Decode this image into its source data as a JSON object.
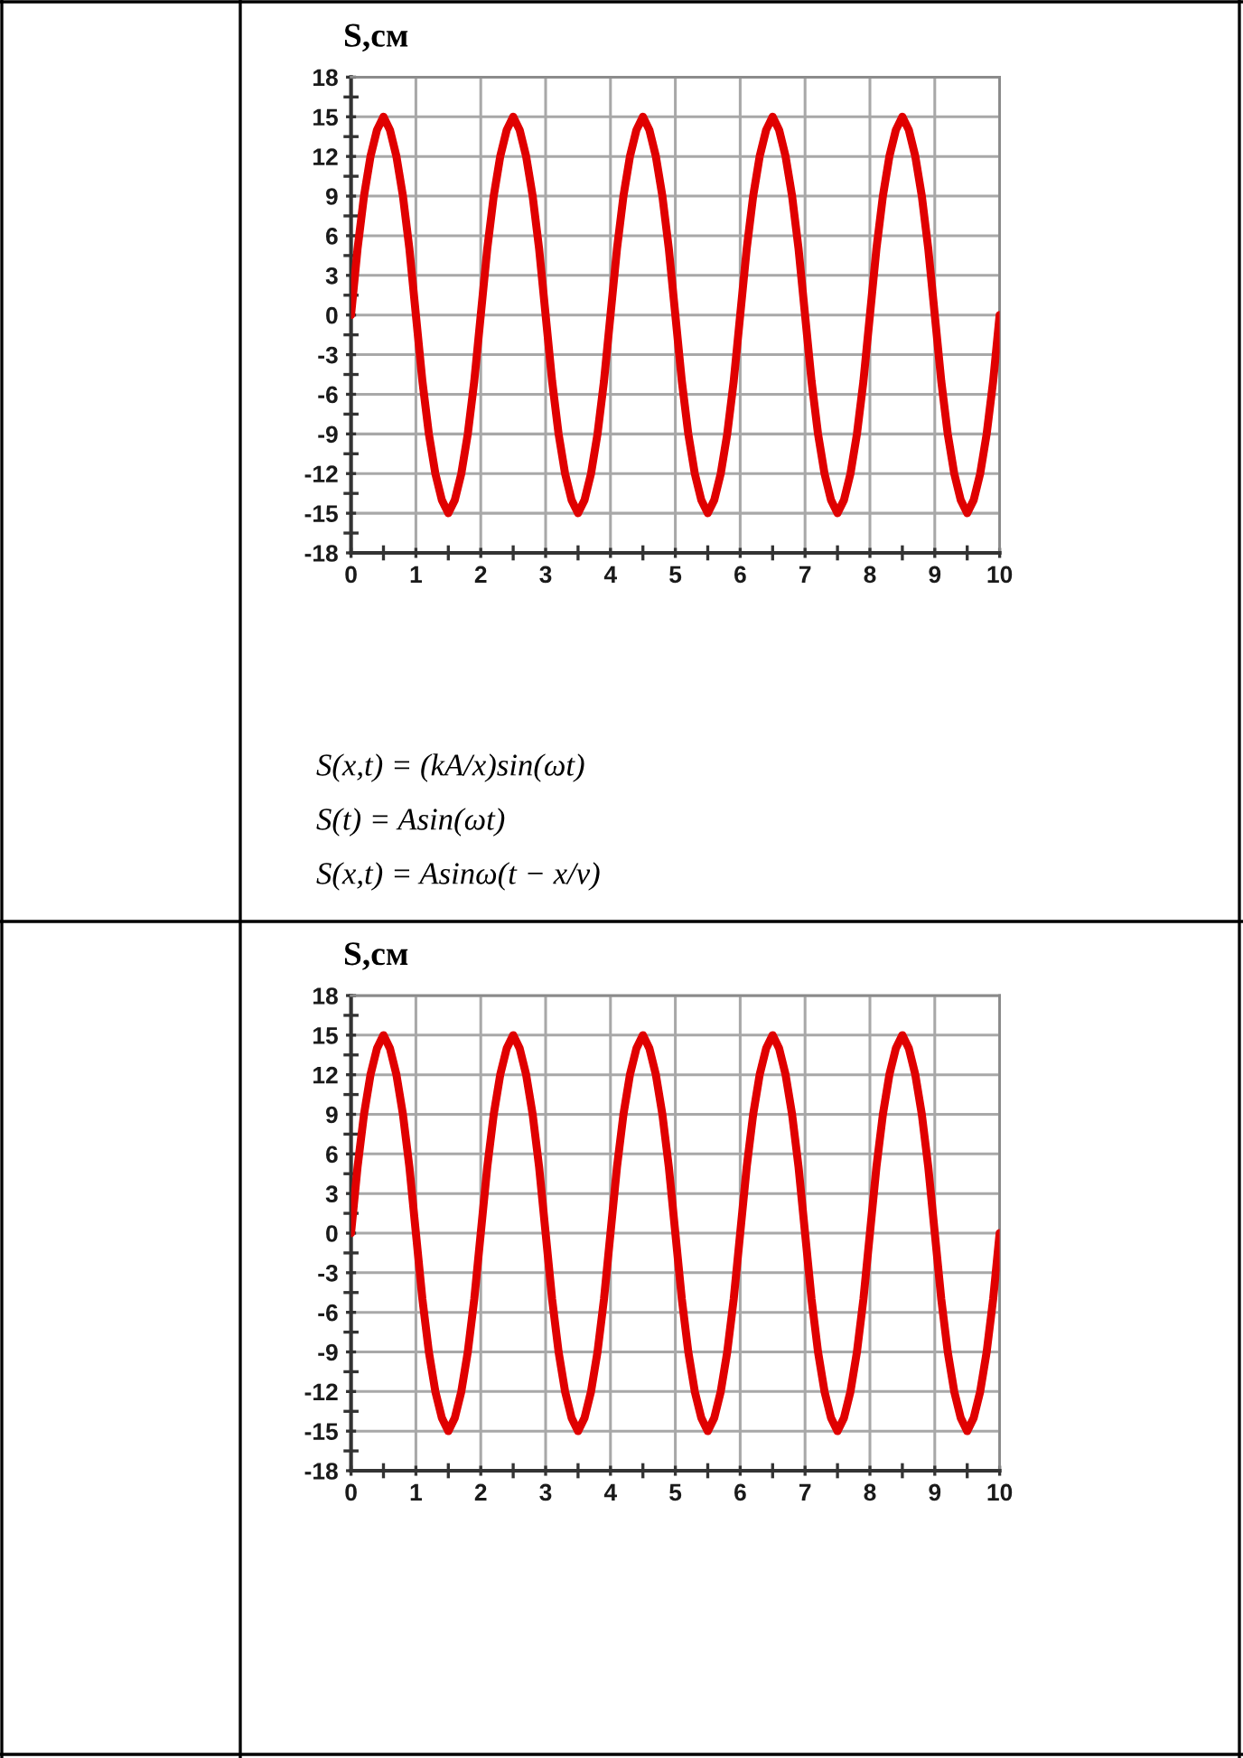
{
  "chart_data": [
    {
      "type": "line",
      "ylabel": "S,см",
      "x": [
        0,
        0.1,
        0.2,
        0.3,
        0.4,
        0.5,
        0.6,
        0.7,
        0.8,
        0.9,
        1,
        1.1,
        1.2,
        1.3,
        1.4,
        1.5,
        1.6,
        1.7,
        1.8,
        1.9,
        2,
        2.1,
        2.2,
        2.3,
        2.4,
        2.5,
        2.6,
        2.7,
        2.8,
        2.9,
        3,
        3.1,
        3.2,
        3.3,
        3.4,
        3.5,
        3.6,
        3.7,
        3.8,
        3.9,
        4,
        4.1,
        4.2,
        4.3,
        4.4,
        4.5,
        4.6,
        4.7,
        4.8,
        4.9,
        5,
        5.1,
        5.2,
        5.3,
        5.4,
        5.5,
        5.6,
        5.7,
        5.8,
        5.9,
        6,
        6.1,
        6.2,
        6.3,
        6.4,
        6.5,
        6.6,
        6.7,
        6.8,
        6.9,
        7,
        7.1,
        7.2,
        7.3,
        7.4,
        7.5,
        7.6,
        7.7,
        7.8,
        7.9,
        8,
        8.1,
        8.2,
        8.3,
        8.4,
        8.5,
        8.6,
        8.7,
        8.8,
        8.9,
        9,
        9.1,
        9.2,
        9.3,
        9.4,
        9.5,
        9.6,
        9.7,
        9.8,
        9.9,
        10
      ],
      "series": [
        {
          "color": "#e00000",
          "values": [
            0,
            5,
            9,
            12,
            14,
            15,
            14,
            12,
            9,
            5,
            0,
            -5,
            -9,
            -12,
            -14,
            -15,
            -14,
            -12,
            -9,
            -5,
            0,
            5,
            9,
            12,
            14,
            15,
            14,
            12,
            9,
            5,
            0,
            -5,
            -9,
            -12,
            -14,
            -15,
            -14,
            -12,
            -9,
            -5,
            0,
            5,
            9,
            12,
            14,
            15,
            14,
            12,
            9,
            5,
            0,
            -5,
            -9,
            -12,
            -14,
            -15,
            -14,
            -12,
            -9,
            -5,
            0,
            5,
            9,
            12,
            14,
            15,
            14,
            12,
            9,
            5,
            0,
            -5,
            -9,
            -12,
            -14,
            -15,
            -14,
            -12,
            -9,
            -5,
            0,
            5,
            9,
            12,
            14,
            15,
            14,
            12,
            9,
            5,
            0,
            -5,
            -9,
            -12,
            -14,
            -15,
            -14,
            -12,
            -9,
            -5,
            0
          ]
        }
      ],
      "xlim": [
        0,
        10
      ],
      "ylim": [
        -18,
        18
      ],
      "xticks": [
        0,
        1,
        2,
        3,
        4,
        5,
        6,
        7,
        8,
        9,
        10,
        {
          "value": 0.5,
          "label": null
        },
        {
          "value": 1.5,
          "label": null
        },
        {
          "value": 2.5,
          "label": null
        },
        {
          "value": 3.5,
          "label": null
        },
        {
          "value": 4.5,
          "label": null
        },
        {
          "value": 5.5,
          "label": null
        },
        {
          "value": 6.5,
          "label": null
        },
        {
          "value": 7.5,
          "label": null
        },
        {
          "value": 8.5,
          "label": null
        },
        {
          "value": 9.5,
          "label": null
        }
      ],
      "yticks": [
        -18,
        -15,
        -12,
        -9,
        -6,
        -3,
        0,
        3,
        6,
        9,
        12,
        15,
        18,
        {
          "value": -16.5,
          "label": null
        },
        {
          "value": -13.5,
          "label": null
        },
        {
          "value": -10.5,
          "label": null
        },
        {
          "value": -7.5,
          "label": null
        },
        {
          "value": -4.5,
          "label": null
        },
        {
          "value": -1.5,
          "label": null
        },
        {
          "value": 1.5,
          "label": null
        },
        {
          "value": 4.5,
          "label": null
        },
        {
          "value": 7.5,
          "label": null
        },
        {
          "value": 10.5,
          "label": null
        },
        {
          "value": 13.5,
          "label": null
        },
        {
          "value": 16.5,
          "label": null
        }
      ],
      "grid": true,
      "line_style": "solid",
      "annotations": [
        "S(x,t) = (kA/x)sin(ωt)",
        "S(t) = Asin(ωt)",
        "S(x,t) = Asinω(t − x/v)"
      ]
    },
    {
      "type": "line",
      "ylabel": "S,см",
      "x": [
        0,
        0.1,
        0.2,
        0.3,
        0.4,
        0.5,
        0.6,
        0.7,
        0.8,
        0.9,
        1,
        1.1,
        1.2,
        1.3,
        1.4,
        1.5,
        1.6,
        1.7,
        1.8,
        1.9,
        2,
        2.1,
        2.2,
        2.3,
        2.4,
        2.5,
        2.6,
        2.7,
        2.8,
        2.9,
        3,
        3.1,
        3.2,
        3.3,
        3.4,
        3.5,
        3.6,
        3.7,
        3.8,
        3.9,
        4,
        4.1,
        4.2,
        4.3,
        4.4,
        4.5,
        4.6,
        4.7,
        4.8,
        4.9,
        5,
        5.1,
        5.2,
        5.3,
        5.4,
        5.5,
        5.6,
        5.7,
        5.8,
        5.9,
        6,
        6.1,
        6.2,
        6.3,
        6.4,
        6.5,
        6.6,
        6.7,
        6.8,
        6.9,
        7,
        7.1,
        7.2,
        7.3,
        7.4,
        7.5,
        7.6,
        7.7,
        7.8,
        7.9,
        8,
        8.1,
        8.2,
        8.3,
        8.4,
        8.5,
        8.6,
        8.7,
        8.8,
        8.9,
        9,
        9.1,
        9.2,
        9.3,
        9.4,
        9.5,
        9.6,
        9.7,
        9.8,
        9.9,
        10
      ],
      "series": [
        {
          "color": "#e00000",
          "values": [
            0,
            5,
            9,
            12,
            14,
            15,
            14,
            12,
            9,
            5,
            0,
            -5,
            -9,
            -12,
            -14,
            -15,
            -14,
            -12,
            -9,
            -5,
            0,
            5,
            9,
            12,
            14,
            15,
            14,
            12,
            9,
            5,
            0,
            -5,
            -9,
            -12,
            -14,
            -15,
            -14,
            -12,
            -9,
            -5,
            0,
            5,
            9,
            12,
            14,
            15,
            14,
            12,
            9,
            5,
            0,
            -5,
            -9,
            -12,
            -14,
            -15,
            -14,
            -12,
            -9,
            -5,
            0,
            5,
            9,
            12,
            14,
            15,
            14,
            12,
            9,
            5,
            0,
            -5,
            -9,
            -12,
            -14,
            -15,
            -14,
            -12,
            -9,
            -5,
            0,
            5,
            9,
            12,
            14,
            15,
            14,
            12,
            9,
            5,
            0,
            -5,
            -9,
            -12,
            -14,
            -15,
            -14,
            -12,
            -9,
            -5,
            0
          ]
        }
      ],
      "xlim": [
        0,
        10
      ],
      "ylim": [
        -18,
        18
      ],
      "xticks": [
        0,
        1,
        2,
        3,
        4,
        5,
        6,
        7,
        8,
        9,
        10,
        {
          "value": 0.5,
          "label": null
        },
        {
          "value": 1.5,
          "label": null
        },
        {
          "value": 2.5,
          "label": null
        },
        {
          "value": 3.5,
          "label": null
        },
        {
          "value": 4.5,
          "label": null
        },
        {
          "value": 5.5,
          "label": null
        },
        {
          "value": 6.5,
          "label": null
        },
        {
          "value": 7.5,
          "label": null
        },
        {
          "value": 8.5,
          "label": null
        },
        {
          "value": 9.5,
          "label": null
        }
      ],
      "yticks": [
        -18,
        -15,
        -12,
        -9,
        -6,
        -3,
        0,
        3,
        6,
        9,
        12,
        15,
        18,
        {
          "value": -16.5,
          "label": null
        },
        {
          "value": -13.5,
          "label": null
        },
        {
          "value": -10.5,
          "label": null
        },
        {
          "value": -7.5,
          "label": null
        },
        {
          "value": -4.5,
          "label": null
        },
        {
          "value": -1.5,
          "label": null
        },
        {
          "value": 1.5,
          "label": null
        },
        {
          "value": 4.5,
          "label": null
        },
        {
          "value": 7.5,
          "label": null
        },
        {
          "value": 10.5,
          "label": null
        },
        {
          "value": 13.5,
          "label": null
        },
        {
          "value": 16.5,
          "label": null
        }
      ],
      "grid": true,
      "line_style": "solid"
    }
  ]
}
